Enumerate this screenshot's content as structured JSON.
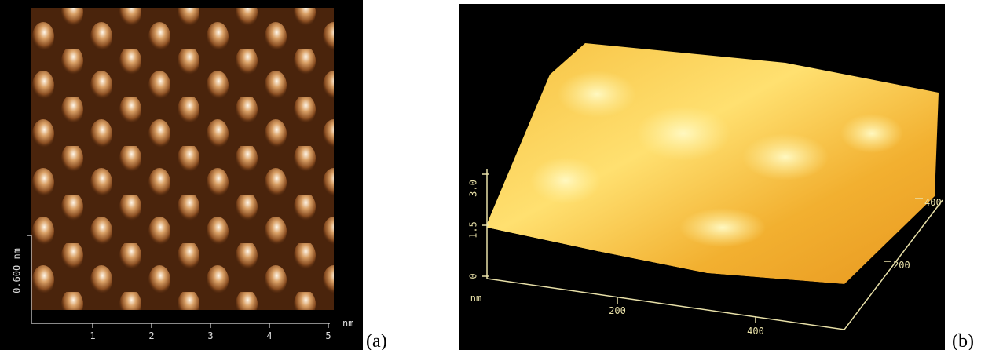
{
  "panels": [
    {
      "caption": "(a)",
      "z_label": "0.600 nm",
      "x_ticks": [
        "1",
        "2",
        "3",
        "4",
        "5"
      ],
      "x_unit": "nm"
    },
    {
      "caption": "(b)",
      "z_ticks": [
        "3.0",
        "1.5",
        "0"
      ],
      "z_unit": "nm",
      "x_ticks": [
        "200",
        "400"
      ],
      "y_ticks": [
        "200",
        "400"
      ]
    }
  ]
}
